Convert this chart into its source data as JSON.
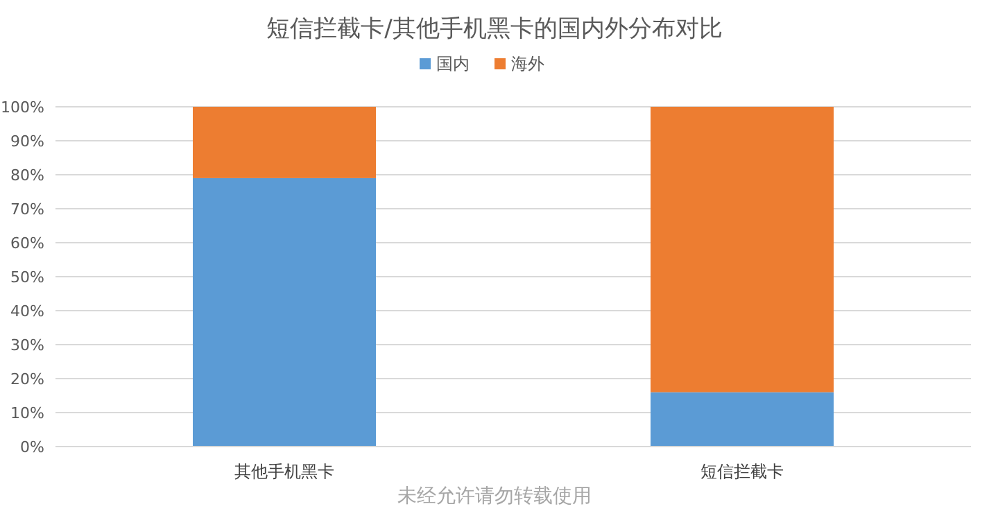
{
  "chart_data": {
    "type": "bar",
    "title": "短信拦截卡/其他手机黑卡的国内外分布对比",
    "categories": [
      "其他手机黑卡",
      "短信拦截卡"
    ],
    "series": [
      {
        "name": "国内",
        "color": "#5b9bd5",
        "values": [
          79,
          16
        ]
      },
      {
        "name": "海外",
        "color": "#ed7d31",
        "values": [
          21,
          84
        ]
      }
    ],
    "stacked": true,
    "ylim": [
      0,
      100
    ],
    "yticks": [
      {
        "value": 0,
        "label": "0%"
      },
      {
        "value": 10,
        "label": "10%"
      },
      {
        "value": 20,
        "label": "20%"
      },
      {
        "value": 30,
        "label": "30%"
      },
      {
        "value": 40,
        "label": "40%"
      },
      {
        "value": 50,
        "label": "50%"
      },
      {
        "value": 60,
        "label": "60%"
      },
      {
        "value": 70,
        "label": "70%"
      },
      {
        "value": 80,
        "label": "80%"
      },
      {
        "value": 90,
        "label": "90%"
      },
      {
        "value": 100,
        "label": "100%"
      }
    ],
    "grid": "y",
    "legend": "top",
    "annotations": [
      "未经允许请勿转载使用"
    ]
  }
}
